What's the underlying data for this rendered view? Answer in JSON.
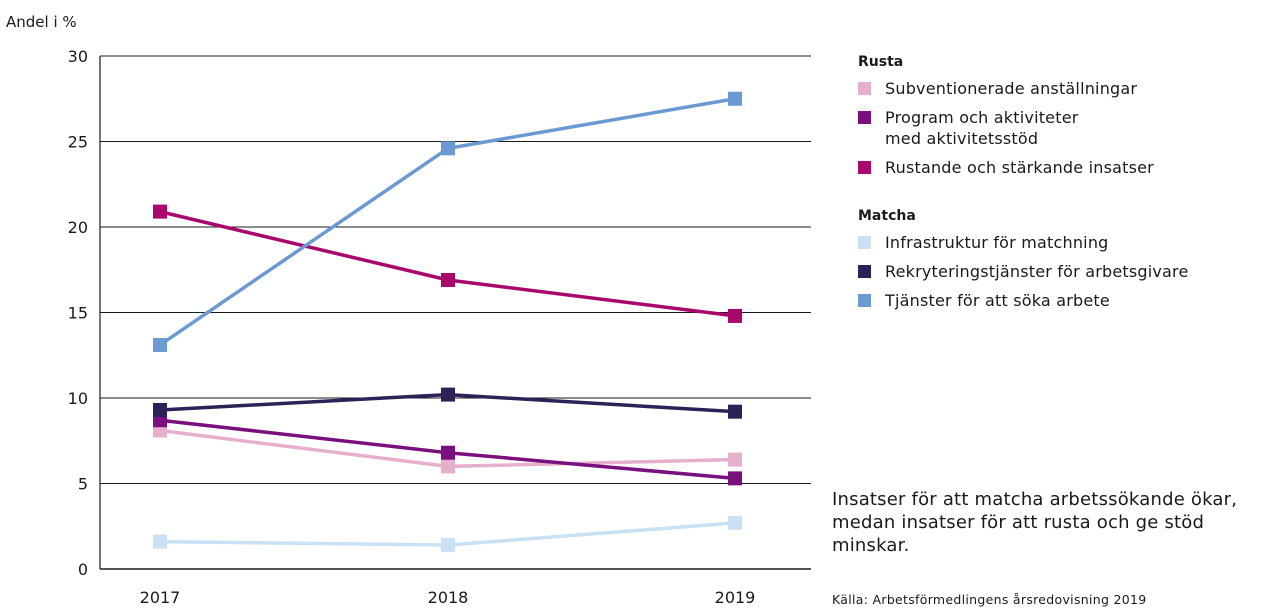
{
  "chart_data": {
    "type": "line",
    "ylabel": "Andel i %",
    "categories": [
      "2017",
      "2018",
      "2019"
    ],
    "ylim": [
      0,
      30
    ],
    "yticks": [
      0,
      5,
      10,
      15,
      20,
      25,
      30
    ],
    "grid": true,
    "series": [
      {
        "name": "Subventionerade anställningar",
        "group": "Rusta",
        "color": "#e6afcb",
        "values": [
          8.1,
          6.0,
          6.4
        ]
      },
      {
        "name": "Program och aktiviteter\nmed aktivitetsstöd",
        "group": "Rusta",
        "color": "#7a0f7e",
        "values": [
          8.7,
          6.8,
          5.3
        ]
      },
      {
        "name": "Rustande och stärkande insatser",
        "group": "Rusta",
        "color": "#a8076b",
        "values": [
          20.9,
          16.9,
          14.8
        ]
      },
      {
        "name": "Infrastruktur för matchning",
        "group": "Matcha",
        "color": "#c9e0f5",
        "values": [
          1.6,
          1.4,
          2.7
        ]
      },
      {
        "name": "Rekryteringstjänster för arbetsgivare",
        "group": "Matcha",
        "color": "#2e2157",
        "values": [
          9.3,
          10.2,
          9.2
        ]
      },
      {
        "name": "Tjänster för att söka arbete",
        "group": "Matcha",
        "color": "#6b9ad2",
        "values": [
          13.1,
          24.6,
          27.5
        ]
      }
    ],
    "legend": {
      "placement": "right",
      "groups": [
        {
          "title": "Rusta",
          "series": [
            0,
            1,
            2
          ]
        },
        {
          "title": "Matcha",
          "series": [
            3,
            4,
            5
          ]
        }
      ]
    }
  },
  "note": "Insatser för att matcha arbetssökande ökar, medan insatser för att rusta och ge stöd minskar.",
  "source": "Källa: Arbetsförmedlingens årsredovisning 2019"
}
